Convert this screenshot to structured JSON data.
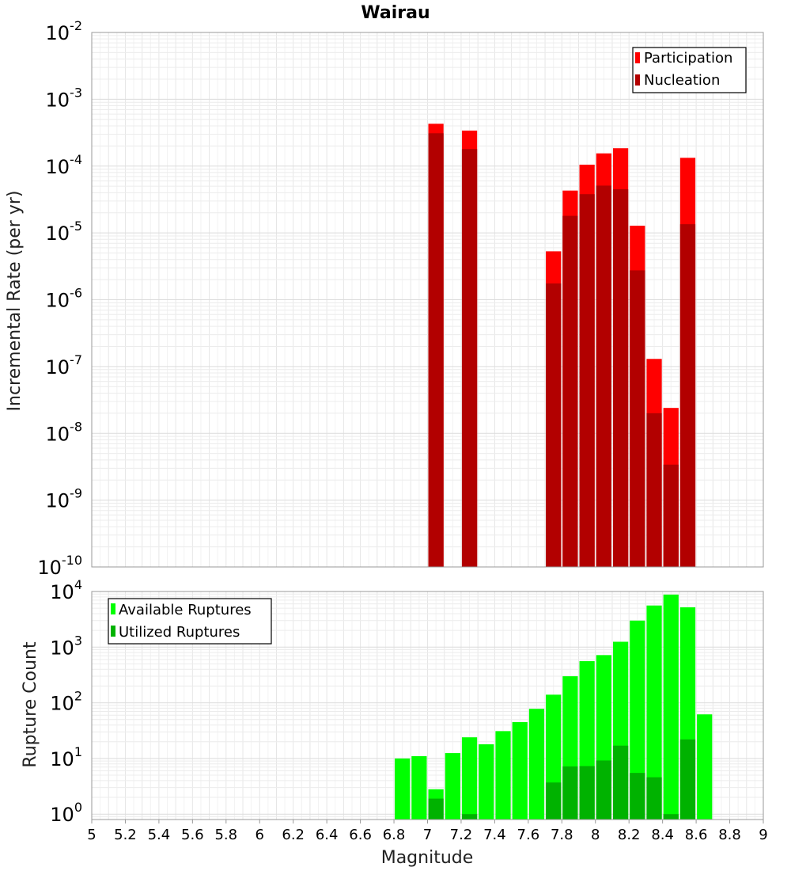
{
  "chart_data": [
    {
      "type": "bar",
      "title": "Wairau",
      "ylabel": "Incremental Rate (per yr)",
      "xlabel": "",
      "y_scale": "log",
      "ylim": [
        1e-10,
        0.01
      ],
      "xlim": [
        5,
        9
      ],
      "grid": true,
      "legend_position": "top-right",
      "y_ticks": [
        {
          "base": "10",
          "exp": "-10",
          "value": 1e-10
        },
        {
          "base": "10",
          "exp": "-9",
          "value": 1e-09
        },
        {
          "base": "10",
          "exp": "-8",
          "value": 1e-08
        },
        {
          "base": "10",
          "exp": "-7",
          "value": 1e-07
        },
        {
          "base": "10",
          "exp": "-6",
          "value": 1e-06
        },
        {
          "base": "10",
          "exp": "-5",
          "value": 1e-05
        },
        {
          "base": "10",
          "exp": "-4",
          "value": 0.0001
        },
        {
          "base": "10",
          "exp": "-3",
          "value": 0.001
        },
        {
          "base": "10",
          "exp": "-2",
          "value": 0.01
        }
      ],
      "bin_width": 0.1,
      "series": [
        {
          "name": "Participation",
          "color": "#ff0000",
          "points": [
            {
              "x": 7.05,
              "y": 0.00043
            },
            {
              "x": 7.25,
              "y": 0.00034
            },
            {
              "x": 7.75,
              "y": 5.3e-06
            },
            {
              "x": 7.85,
              "y": 4.3e-05
            },
            {
              "x": 7.95,
              "y": 0.000105
            },
            {
              "x": 8.05,
              "y": 0.000155
            },
            {
              "x": 8.15,
              "y": 0.000185
            },
            {
              "x": 8.25,
              "y": 1.28e-05
            },
            {
              "x": 8.35,
              "y": 1.3e-07
            },
            {
              "x": 8.45,
              "y": 2.4e-08
            },
            {
              "x": 8.55,
              "y": 0.000133
            }
          ]
        },
        {
          "name": "Nucleation",
          "color": "#b20000",
          "points": [
            {
              "x": 7.05,
              "y": 0.00031
            },
            {
              "x": 7.25,
              "y": 0.00018
            },
            {
              "x": 7.75,
              "y": 1.75e-06
            },
            {
              "x": 7.85,
              "y": 1.8e-05
            },
            {
              "x": 7.95,
              "y": 3.8e-05
            },
            {
              "x": 8.05,
              "y": 5.1e-05
            },
            {
              "x": 8.15,
              "y": 4.5e-05
            },
            {
              "x": 8.25,
              "y": 2.75e-06
            },
            {
              "x": 8.35,
              "y": 2e-08
            },
            {
              "x": 8.45,
              "y": 3.4e-09
            },
            {
              "x": 8.55,
              "y": 1.35e-05
            }
          ]
        }
      ]
    },
    {
      "type": "bar",
      "title": "",
      "ylabel": "Rupture Count",
      "xlabel": "Magnitude",
      "y_scale": "log",
      "ylim": [
        0.8,
        10000
      ],
      "xlim": [
        5,
        9
      ],
      "grid": true,
      "legend_position": "top-left",
      "y_ticks": [
        {
          "base": "10",
          "exp": "0",
          "value": 1
        },
        {
          "base": "10",
          "exp": "1",
          "value": 10
        },
        {
          "base": "10",
          "exp": "2",
          "value": 100
        },
        {
          "base": "10",
          "exp": "3",
          "value": 1000
        },
        {
          "base": "10",
          "exp": "4",
          "value": 10000
        }
      ],
      "x_ticks": [
        "5",
        "5.2",
        "5.4",
        "5.6",
        "5.8",
        "6",
        "6.2",
        "6.4",
        "6.6",
        "6.8",
        "7",
        "7.2",
        "7.4",
        "7.6",
        "7.8",
        "8",
        "8.2",
        "8.4",
        "8.6",
        "8.8",
        "9"
      ],
      "bin_width": 0.1,
      "series": [
        {
          "name": "Available Ruptures",
          "color": "#00ff00",
          "points": [
            {
              "x": 6.85,
              "y": 10
            },
            {
              "x": 6.95,
              "y": 11
            },
            {
              "x": 7.05,
              "y": 2.8
            },
            {
              "x": 7.15,
              "y": 12.5
            },
            {
              "x": 7.25,
              "y": 24
            },
            {
              "x": 7.35,
              "y": 18
            },
            {
              "x": 7.45,
              "y": 31
            },
            {
              "x": 7.55,
              "y": 45
            },
            {
              "x": 7.65,
              "y": 78
            },
            {
              "x": 7.75,
              "y": 140
            },
            {
              "x": 7.85,
              "y": 300
            },
            {
              "x": 7.95,
              "y": 560
            },
            {
              "x": 8.05,
              "y": 720
            },
            {
              "x": 8.15,
              "y": 1250
            },
            {
              "x": 8.25,
              "y": 3000
            },
            {
              "x": 8.35,
              "y": 5600
            },
            {
              "x": 8.45,
              "y": 8800
            },
            {
              "x": 8.55,
              "y": 5200
            },
            {
              "x": 8.65,
              "y": 62
            }
          ]
        },
        {
          "name": "Utilized Ruptures",
          "color": "#00b200",
          "points": [
            {
              "x": 7.05,
              "y": 1.9
            },
            {
              "x": 7.25,
              "y": 1
            },
            {
              "x": 7.75,
              "y": 3.7
            },
            {
              "x": 7.85,
              "y": 7.2
            },
            {
              "x": 7.95,
              "y": 7.3
            },
            {
              "x": 8.05,
              "y": 9.2
            },
            {
              "x": 8.15,
              "y": 17
            },
            {
              "x": 8.25,
              "y": 5.5
            },
            {
              "x": 8.35,
              "y": 4.6
            },
            {
              "x": 8.45,
              "y": 1
            },
            {
              "x": 8.55,
              "y": 22
            }
          ]
        }
      ]
    }
  ]
}
